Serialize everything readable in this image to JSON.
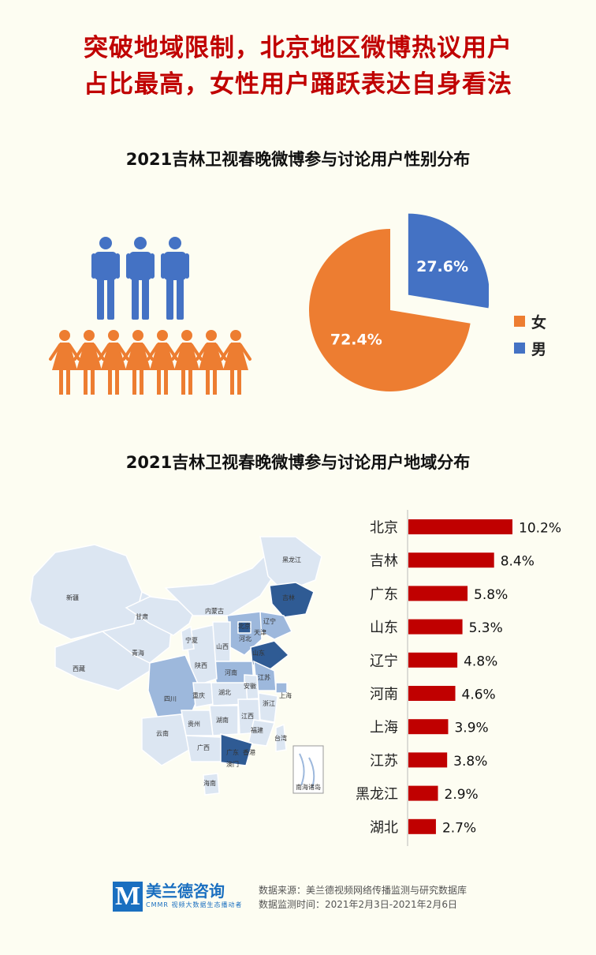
{
  "headline": {
    "line1": "突破地域限制，北京地区微博热议用户",
    "line2": "占比最高，女性用户踊跃表达自身看法"
  },
  "colors": {
    "female": "#ed7d31",
    "male": "#4472c4",
    "bar": "#c00000",
    "map_light": "#dce6f2",
    "map_mid": "#9db8dc",
    "map_dark": "#2f5b94"
  },
  "icons": {
    "male_figures": "male-person-icon",
    "female_figures": "female-person-icon"
  },
  "chart_data": [
    {
      "type": "pie",
      "title": "2021吉林卫视春晚微博参与讨论用户性别分布",
      "labels": [
        "女",
        "男"
      ],
      "values": [
        72.4,
        27.6
      ],
      "value_labels": [
        "72.4%",
        "27.6%"
      ],
      "legend": "right",
      "exploded_slice": "男"
    },
    {
      "type": "bar",
      "orientation": "horizontal",
      "title": "2021吉林卫视春晚微博参与讨论用户地域分布",
      "categories": [
        "北京",
        "吉林",
        "广东",
        "山东",
        "辽宁",
        "河南",
        "上海",
        "江苏",
        "黑龙江",
        "湖北"
      ],
      "values": [
        10.2,
        8.4,
        5.8,
        5.3,
        4.8,
        4.6,
        3.9,
        3.8,
        2.9,
        2.7
      ],
      "value_labels": [
        "10.2%",
        "8.4%",
        "5.8%",
        "5.3%",
        "4.8%",
        "4.6%",
        "3.9%",
        "3.8%",
        "2.9%",
        "2.7%"
      ],
      "grid": false
    }
  ],
  "map": {
    "labels": [
      "新疆",
      "西藏",
      "青海",
      "甘肃",
      "内蒙古",
      "宁夏",
      "陕西",
      "山西",
      "河北",
      "北京",
      "天津",
      "辽宁",
      "吉林",
      "黑龙江",
      "山东",
      "河南",
      "江苏",
      "安徽",
      "上海",
      "湖北",
      "重庆",
      "四川",
      "云南",
      "贵州",
      "湖南",
      "江西",
      "浙江",
      "福建",
      "广西",
      "广东",
      "香港",
      "澳门",
      "台湾",
      "海南",
      "南海诸岛"
    ]
  },
  "footer": {
    "logo_mark": "M",
    "logo_name": "美兰德咨询",
    "logo_sub": "CMMR 视频大数据生态播动者",
    "source": "数据来源：美兰德视频网络传播监测与研究数据库",
    "period": "数据监测时间：2021年2月3日-2021年2月6日"
  }
}
